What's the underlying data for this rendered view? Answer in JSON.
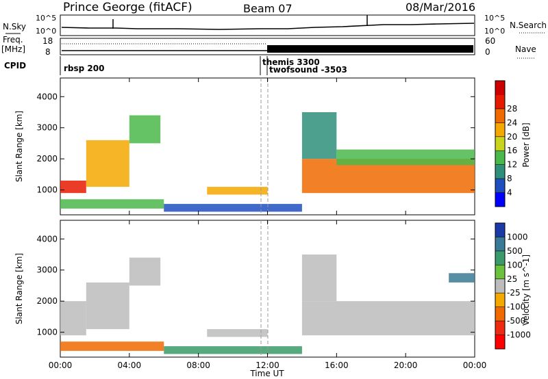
{
  "header": {
    "station": "Prince George (fitACF)",
    "beam": "Beam 07",
    "date": "08/Mar/2016"
  },
  "top_panels": {
    "nsky_label": "N.Sky",
    "nsky_scale_top": "10^5",
    "nsky_scale_bottom": "10^0",
    "nsearch_label": "N.Search",
    "freq_label_line1": "Freq.",
    "freq_label_line2": "[MHz]",
    "freq_ticks": [
      "18",
      "8"
    ],
    "nave_label": "Nave",
    "nave_ticks": [
      "60",
      "0"
    ],
    "cpid_label": "CPID",
    "cpid_entries": [
      {
        "name": "rbsp 200",
        "time_h": 0.0
      },
      {
        "name": "themis 3300",
        "time_h": 11.5
      },
      {
        "name": "twofsound -3503",
        "time_h": 12.0
      }
    ]
  },
  "chart_data": [
    {
      "type": "heatmap",
      "name": "power",
      "ylabel": "Slant Range [km]",
      "xlim": [
        0,
        24
      ],
      "ylim": [
        200,
        4600
      ],
      "yticks": [
        "1000",
        "2000",
        "3000",
        "4000"
      ],
      "colorbar": {
        "label": "Power [dB]",
        "ticks": [
          "4",
          "8",
          "12",
          "16",
          "20",
          "24",
          "28"
        ],
        "colors": [
          "#0000ff",
          "#1f4fbf",
          "#2f8f7a",
          "#4ab84a",
          "#c8d41e",
          "#f5a800",
          "#f06a00",
          "#e61a00",
          "#cc0000"
        ]
      },
      "echo_bands": [
        {
          "t0": 0.0,
          "t1": 1.5,
          "r0": 900,
          "r1": 1300,
          "level": 26
        },
        {
          "t0": 1.5,
          "t1": 4.0,
          "r0": 1100,
          "r1": 2600,
          "level": 18
        },
        {
          "t0": 4.0,
          "t1": 5.8,
          "r0": 2500,
          "r1": 3400,
          "level": 14
        },
        {
          "t0": 0.0,
          "t1": 6.0,
          "r0": 400,
          "r1": 700,
          "level": 12
        },
        {
          "t0": 8.5,
          "t1": 12.0,
          "r0": 850,
          "r1": 1100,
          "level": 18
        },
        {
          "t0": 6.0,
          "t1": 14.0,
          "r0": 300,
          "r1": 550,
          "level": 6
        },
        {
          "t0": 14.0,
          "t1": 24.0,
          "r0": 900,
          "r1": 2000,
          "level": 22
        },
        {
          "t0": 14.0,
          "t1": 16.0,
          "r0": 2000,
          "r1": 3500,
          "level": 10
        },
        {
          "t0": 16.0,
          "t1": 24.0,
          "r0": 1800,
          "r1": 2300,
          "level": 12
        }
      ]
    },
    {
      "type": "heatmap",
      "name": "velocity",
      "xlabel": "Time UT",
      "ylabel": "Slant Range [km]",
      "xlim": [
        0,
        24
      ],
      "ylim": [
        200,
        4600
      ],
      "xticks": [
        "00:00",
        "04:00",
        "08:00",
        "12:00",
        "16:00",
        "20:00",
        "00:00"
      ],
      "yticks": [
        "1000",
        "2000",
        "3000",
        "4000"
      ],
      "colorbar": {
        "label": "Velocity [m s^-1]",
        "ticks": [
          "1000",
          "500",
          "100",
          "25",
          "-25",
          "-100",
          "-500",
          "-1000"
        ],
        "colors": [
          "#1c3aa6",
          "#3a7a96",
          "#3a9a6a",
          "#6cc23c",
          "#bcbcbc",
          "#f5a800",
          "#f06a00",
          "#ee2a10",
          "#ff0000"
        ]
      },
      "echo_bands": [
        {
          "t0": 0.0,
          "t1": 1.5,
          "r0": 900,
          "r1": 2000,
          "level": 0
        },
        {
          "t0": 1.5,
          "t1": 4.0,
          "r0": 1100,
          "r1": 2600,
          "level": 0
        },
        {
          "t0": 4.0,
          "t1": 5.8,
          "r0": 2500,
          "r1": 3400,
          "level": 0
        },
        {
          "t0": 0.0,
          "t1": 6.0,
          "r0": 400,
          "r1": 700,
          "level": -150
        },
        {
          "t0": 8.5,
          "t1": 12.0,
          "r0": 850,
          "r1": 1100,
          "level": 0
        },
        {
          "t0": 6.0,
          "t1": 14.0,
          "r0": 300,
          "r1": 550,
          "level": 80
        },
        {
          "t0": 14.0,
          "t1": 24.0,
          "r0": 900,
          "r1": 2000,
          "level": 0
        },
        {
          "t0": 14.0,
          "t1": 16.0,
          "r0": 2000,
          "r1": 3500,
          "level": 0
        },
        {
          "t0": 22.5,
          "t1": 24.0,
          "r0": 2600,
          "r1": 2900,
          "level": 400
        }
      ]
    }
  ]
}
